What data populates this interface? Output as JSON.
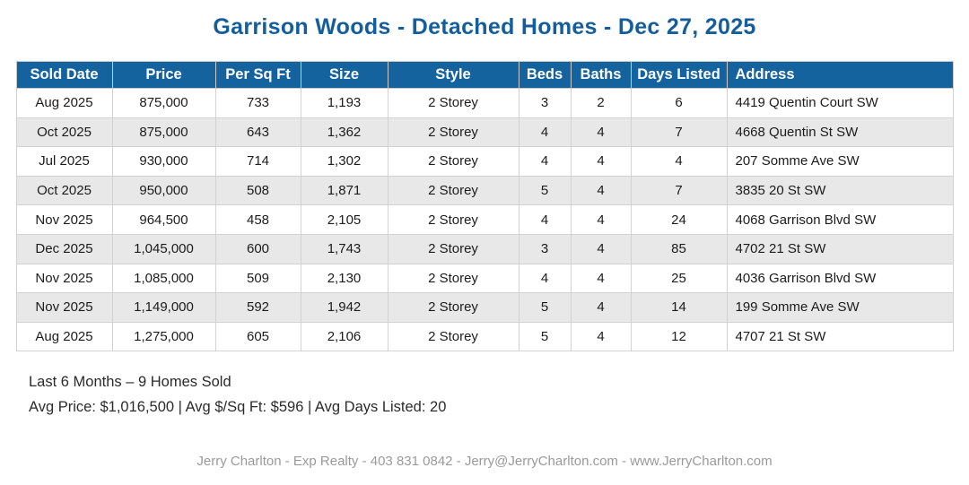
{
  "title": "Garrison Woods - Detached Homes - Dec 27, 2025",
  "table": {
    "columns": [
      "Sold Date",
      "Price",
      "Per Sq Ft",
      "Size",
      "Style",
      "Beds",
      "Baths",
      "Days Listed",
      "Address"
    ],
    "column_keys": [
      "solddate",
      "price",
      "persqft",
      "size",
      "style",
      "beds",
      "baths",
      "days",
      "address"
    ],
    "rows": [
      [
        "Aug 2025",
        "875,000",
        "733",
        "1,193",
        "2 Storey",
        "3",
        "2",
        "6",
        "4419 Quentin Court SW"
      ],
      [
        "Oct 2025",
        "875,000",
        "643",
        "1,362",
        "2 Storey",
        "4",
        "4",
        "7",
        "4668 Quentin St SW"
      ],
      [
        "Jul 2025",
        "930,000",
        "714",
        "1,302",
        "2 Storey",
        "4",
        "4",
        "4",
        "207 Somme Ave SW"
      ],
      [
        "Oct 2025",
        "950,000",
        "508",
        "1,871",
        "2 Storey",
        "5",
        "4",
        "7",
        "3835 20 St SW"
      ],
      [
        "Nov 2025",
        "964,500",
        "458",
        "2,105",
        "2 Storey",
        "4",
        "4",
        "24",
        "4068 Garrison Blvd SW"
      ],
      [
        "Dec 2025",
        "1,045,000",
        "600",
        "1,743",
        "2 Storey",
        "3",
        "4",
        "85",
        "4702 21 St SW"
      ],
      [
        "Nov 2025",
        "1,085,000",
        "509",
        "2,130",
        "2 Storey",
        "4",
        "4",
        "25",
        "4036 Garrison Blvd SW"
      ],
      [
        "Nov 2025",
        "1,149,000",
        "592",
        "1,942",
        "2 Storey",
        "5",
        "4",
        "14",
        "199 Somme Ave SW"
      ],
      [
        "Aug 2025",
        "1,275,000",
        "605",
        "2,106",
        "2 Storey",
        "5",
        "4",
        "12",
        "4707 21 St SW"
      ]
    ]
  },
  "summary": {
    "line1": "Last 6 Months – 9 Homes Sold",
    "line2": "Avg Price: $1,016,500 | Avg $/Sq Ft: $596 | Avg Days Listed: 20"
  },
  "footer": {
    "credit": "Jerry Charlton - Exp Realty - 403 831 0842 - Jerry@JerryCharlton.com - www.JerryCharlton.com"
  },
  "colors": {
    "title_blue": "#135e9b",
    "header_bg": "#15639e",
    "header_text": "#ffffff",
    "row_stripe": "#e8e8e8",
    "cell_border": "#d2d2d2",
    "footer_gray": "#9a9a9a"
  }
}
